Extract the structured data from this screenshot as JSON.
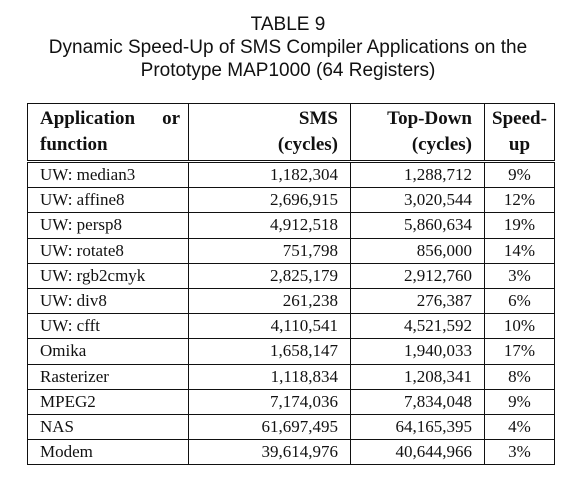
{
  "caption": {
    "table_number": "TABLE 9",
    "title_line1": "Dynamic Speed-Up of SMS Compiler Applications on the",
    "title_line2": "Prototype MAP1000 (64 Registers)"
  },
  "headers": {
    "application_word1": "Application",
    "application_word2": "or",
    "application_line2": "function",
    "sms_line1": "SMS",
    "sms_line2": "(cycles)",
    "topdown_line1": "Top-Down",
    "topdown_line2": "(cycles)",
    "speedup_line1": "Speed-",
    "speedup_line2": "up"
  },
  "rows": [
    {
      "app": "UW: median3",
      "sms": "1,182,304",
      "topdown": "1,288,712",
      "speedup": "9%"
    },
    {
      "app": "UW: affine8",
      "sms": "2,696,915",
      "topdown": "3,020,544",
      "speedup": "12%"
    },
    {
      "app": "UW: persp8",
      "sms": "4,912,518",
      "topdown": "5,860,634",
      "speedup": "19%"
    },
    {
      "app": "UW: rotate8",
      "sms": "751,798",
      "topdown": "856,000",
      "speedup": "14%"
    },
    {
      "app": "UW: rgb2cmyk",
      "sms": "2,825,179",
      "topdown": "2,912,760",
      "speedup": "3%"
    },
    {
      "app": "UW: div8",
      "sms": "261,238",
      "topdown": "276,387",
      "speedup": "6%"
    },
    {
      "app": "UW: cfft",
      "sms": "4,110,541",
      "topdown": "4,521,592",
      "speedup": "10%"
    },
    {
      "app": "Omika",
      "sms": "1,658,147",
      "topdown": "1,940,033",
      "speedup": "17%"
    },
    {
      "app": "Rasterizer",
      "sms": "1,118,834",
      "topdown": "1,208,341",
      "speedup": "8%"
    },
    {
      "app": "MPEG2",
      "sms": "7,174,036",
      "topdown": "7,834,048",
      "speedup": "9%"
    },
    {
      "app": "NAS",
      "sms": "61,697,495",
      "topdown": "64,165,395",
      "speedup": "4%"
    },
    {
      "app": "Modem",
      "sms": "39,614,976",
      "topdown": "40,644,966",
      "speedup": "3%"
    }
  ]
}
